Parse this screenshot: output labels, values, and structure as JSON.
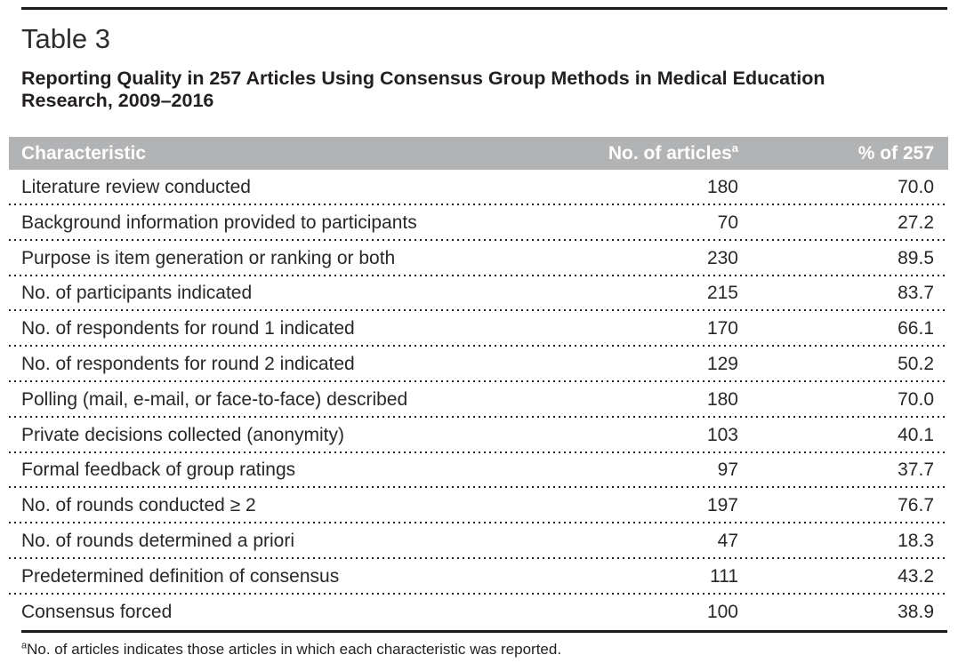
{
  "header": {
    "table_label": "Table 3",
    "title": "Reporting Quality in 257 Articles Using Consensus Group Methods in Medical Education Research, 2009–2016"
  },
  "table": {
    "columns": {
      "characteristic": "Characteristic",
      "articles": "No. of articles",
      "articles_superscript": "a",
      "percent": "% of 257"
    },
    "rows": [
      {
        "characteristic": "Literature review conducted",
        "articles": "180",
        "percent": "70.0"
      },
      {
        "characteristic": "Background information provided to participants",
        "articles": "70",
        "percent": "27.2"
      },
      {
        "characteristic": "Purpose is item generation or ranking or both",
        "articles": "230",
        "percent": "89.5"
      },
      {
        "characteristic": "No. of participants indicated",
        "articles": "215",
        "percent": "83.7"
      },
      {
        "characteristic": "No. of respondents for round 1 indicated",
        "articles": "170",
        "percent": "66.1"
      },
      {
        "characteristic": "No. of respondents for round 2 indicated",
        "articles": "129",
        "percent": "50.2"
      },
      {
        "characteristic": "Polling (mail, e-mail, or face-to-face) described",
        "articles": "180",
        "percent": "70.0"
      },
      {
        "characteristic": "Private decisions collected (anonymity)",
        "articles": "103",
        "percent": "40.1"
      },
      {
        "characteristic": "Formal feedback of group ratings",
        "articles": "97",
        "percent": "37.7"
      },
      {
        "characteristic": "No. of rounds conducted ≥ 2",
        "articles": "197",
        "percent": "76.7"
      },
      {
        "characteristic": "No. of rounds determined a priori",
        "articles": "47",
        "percent": "18.3"
      },
      {
        "characteristic": "Predetermined definition of consensus",
        "articles": "111",
        "percent": "43.2"
      },
      {
        "characteristic": "Consensus forced",
        "articles": "100",
        "percent": "38.9"
      }
    ]
  },
  "footnote": {
    "marker": "a",
    "text": "No. of articles indicates those articles in which each characteristic was reported."
  },
  "colors": {
    "header_bg": "#b1b3b5",
    "header_text": "#ffffff",
    "body_text": "#26282b",
    "rule": "#1c1c1e"
  }
}
